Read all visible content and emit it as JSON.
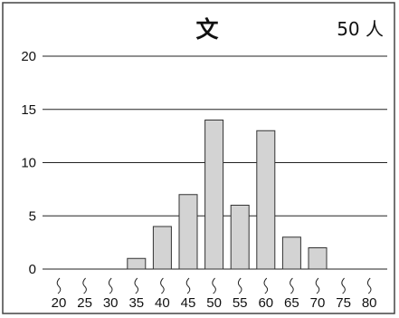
{
  "chart_data": {
    "type": "bar",
    "title": "文",
    "annotation": "50 人",
    "categories": [
      "20",
      "25",
      "30",
      "35",
      "40",
      "45",
      "50",
      "55",
      "60",
      "65",
      "70",
      "75",
      "80"
    ],
    "values": [
      0,
      0,
      0,
      1,
      4,
      7,
      14,
      6,
      13,
      3,
      2,
      0,
      0
    ],
    "y_ticks": [
      "0",
      "5",
      "10",
      "15",
      "20"
    ],
    "ylim": [
      0,
      20
    ],
    "xlabel": "",
    "ylabel": "",
    "grid": true,
    "legend": "none",
    "colors": {
      "bar_fill": "#d3d3d3",
      "bar_stroke": "#333333",
      "grid": "#222222"
    }
  }
}
